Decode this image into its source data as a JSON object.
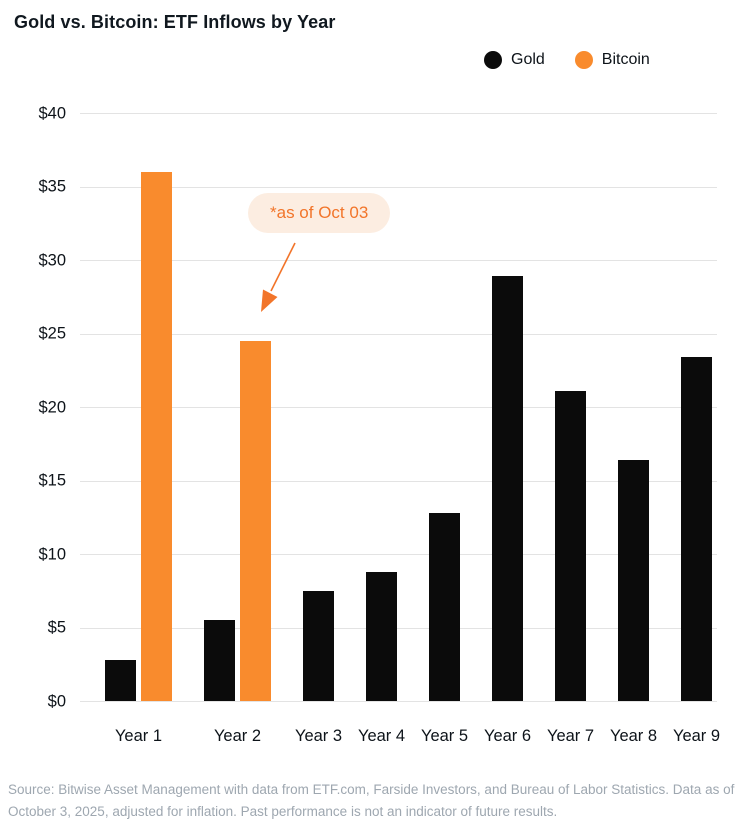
{
  "title": "Gold vs. Bitcoin: ETF Inflows by Year",
  "legend": [
    {
      "label": "Gold",
      "color": "#0b0b0b"
    },
    {
      "label": "Bitcoin",
      "color": "#f98b2d"
    }
  ],
  "annotation": {
    "text": "*as of Oct 03"
  },
  "colors": {
    "gold": "#0b0b0b",
    "bitcoin": "#f98b2d",
    "annotation_text": "#f2752a",
    "annotation_bg": "#fcede1",
    "grid": "#e3e3e3",
    "footer_text": "#9ea7b0"
  },
  "footer": {
    "lines": [
      "Source: Bitwise Asset Management with data from ETF.com, Farside Investors, and Bureau of Labor Statistics. Data as of",
      "October 3, 2025, adjusted for inflation. Past performance is not an indicator of future results."
    ]
  },
  "chart_data": {
    "type": "bar",
    "title": "Gold vs. Bitcoin: ETF Inflows by Year",
    "categories": [
      "Year 1",
      "Year 2",
      "Year 3",
      "Year 4",
      "Year 5",
      "Year 6",
      "Year 7",
      "Year 8",
      "Year 9"
    ],
    "series": [
      {
        "name": "Gold",
        "color": "#0b0b0b",
        "values": [
          2.8,
          5.5,
          7.5,
          8.8,
          12.8,
          28.9,
          21.1,
          16.4,
          23.4
        ]
      },
      {
        "name": "Bitcoin",
        "color": "#f98b2d",
        "values": [
          36.0,
          24.5,
          null,
          null,
          null,
          null,
          null,
          null,
          null
        ]
      }
    ],
    "ylim": [
      0,
      40
    ],
    "yticks": [
      "$0",
      "$5",
      "$10",
      "$15",
      "$20",
      "$25",
      "$30",
      "$35",
      "$40"
    ],
    "grid": true,
    "legend_position": "top-right",
    "annotation": {
      "text": "*as of Oct 03",
      "target": {
        "category": "Year 2",
        "series": "Bitcoin"
      }
    }
  }
}
